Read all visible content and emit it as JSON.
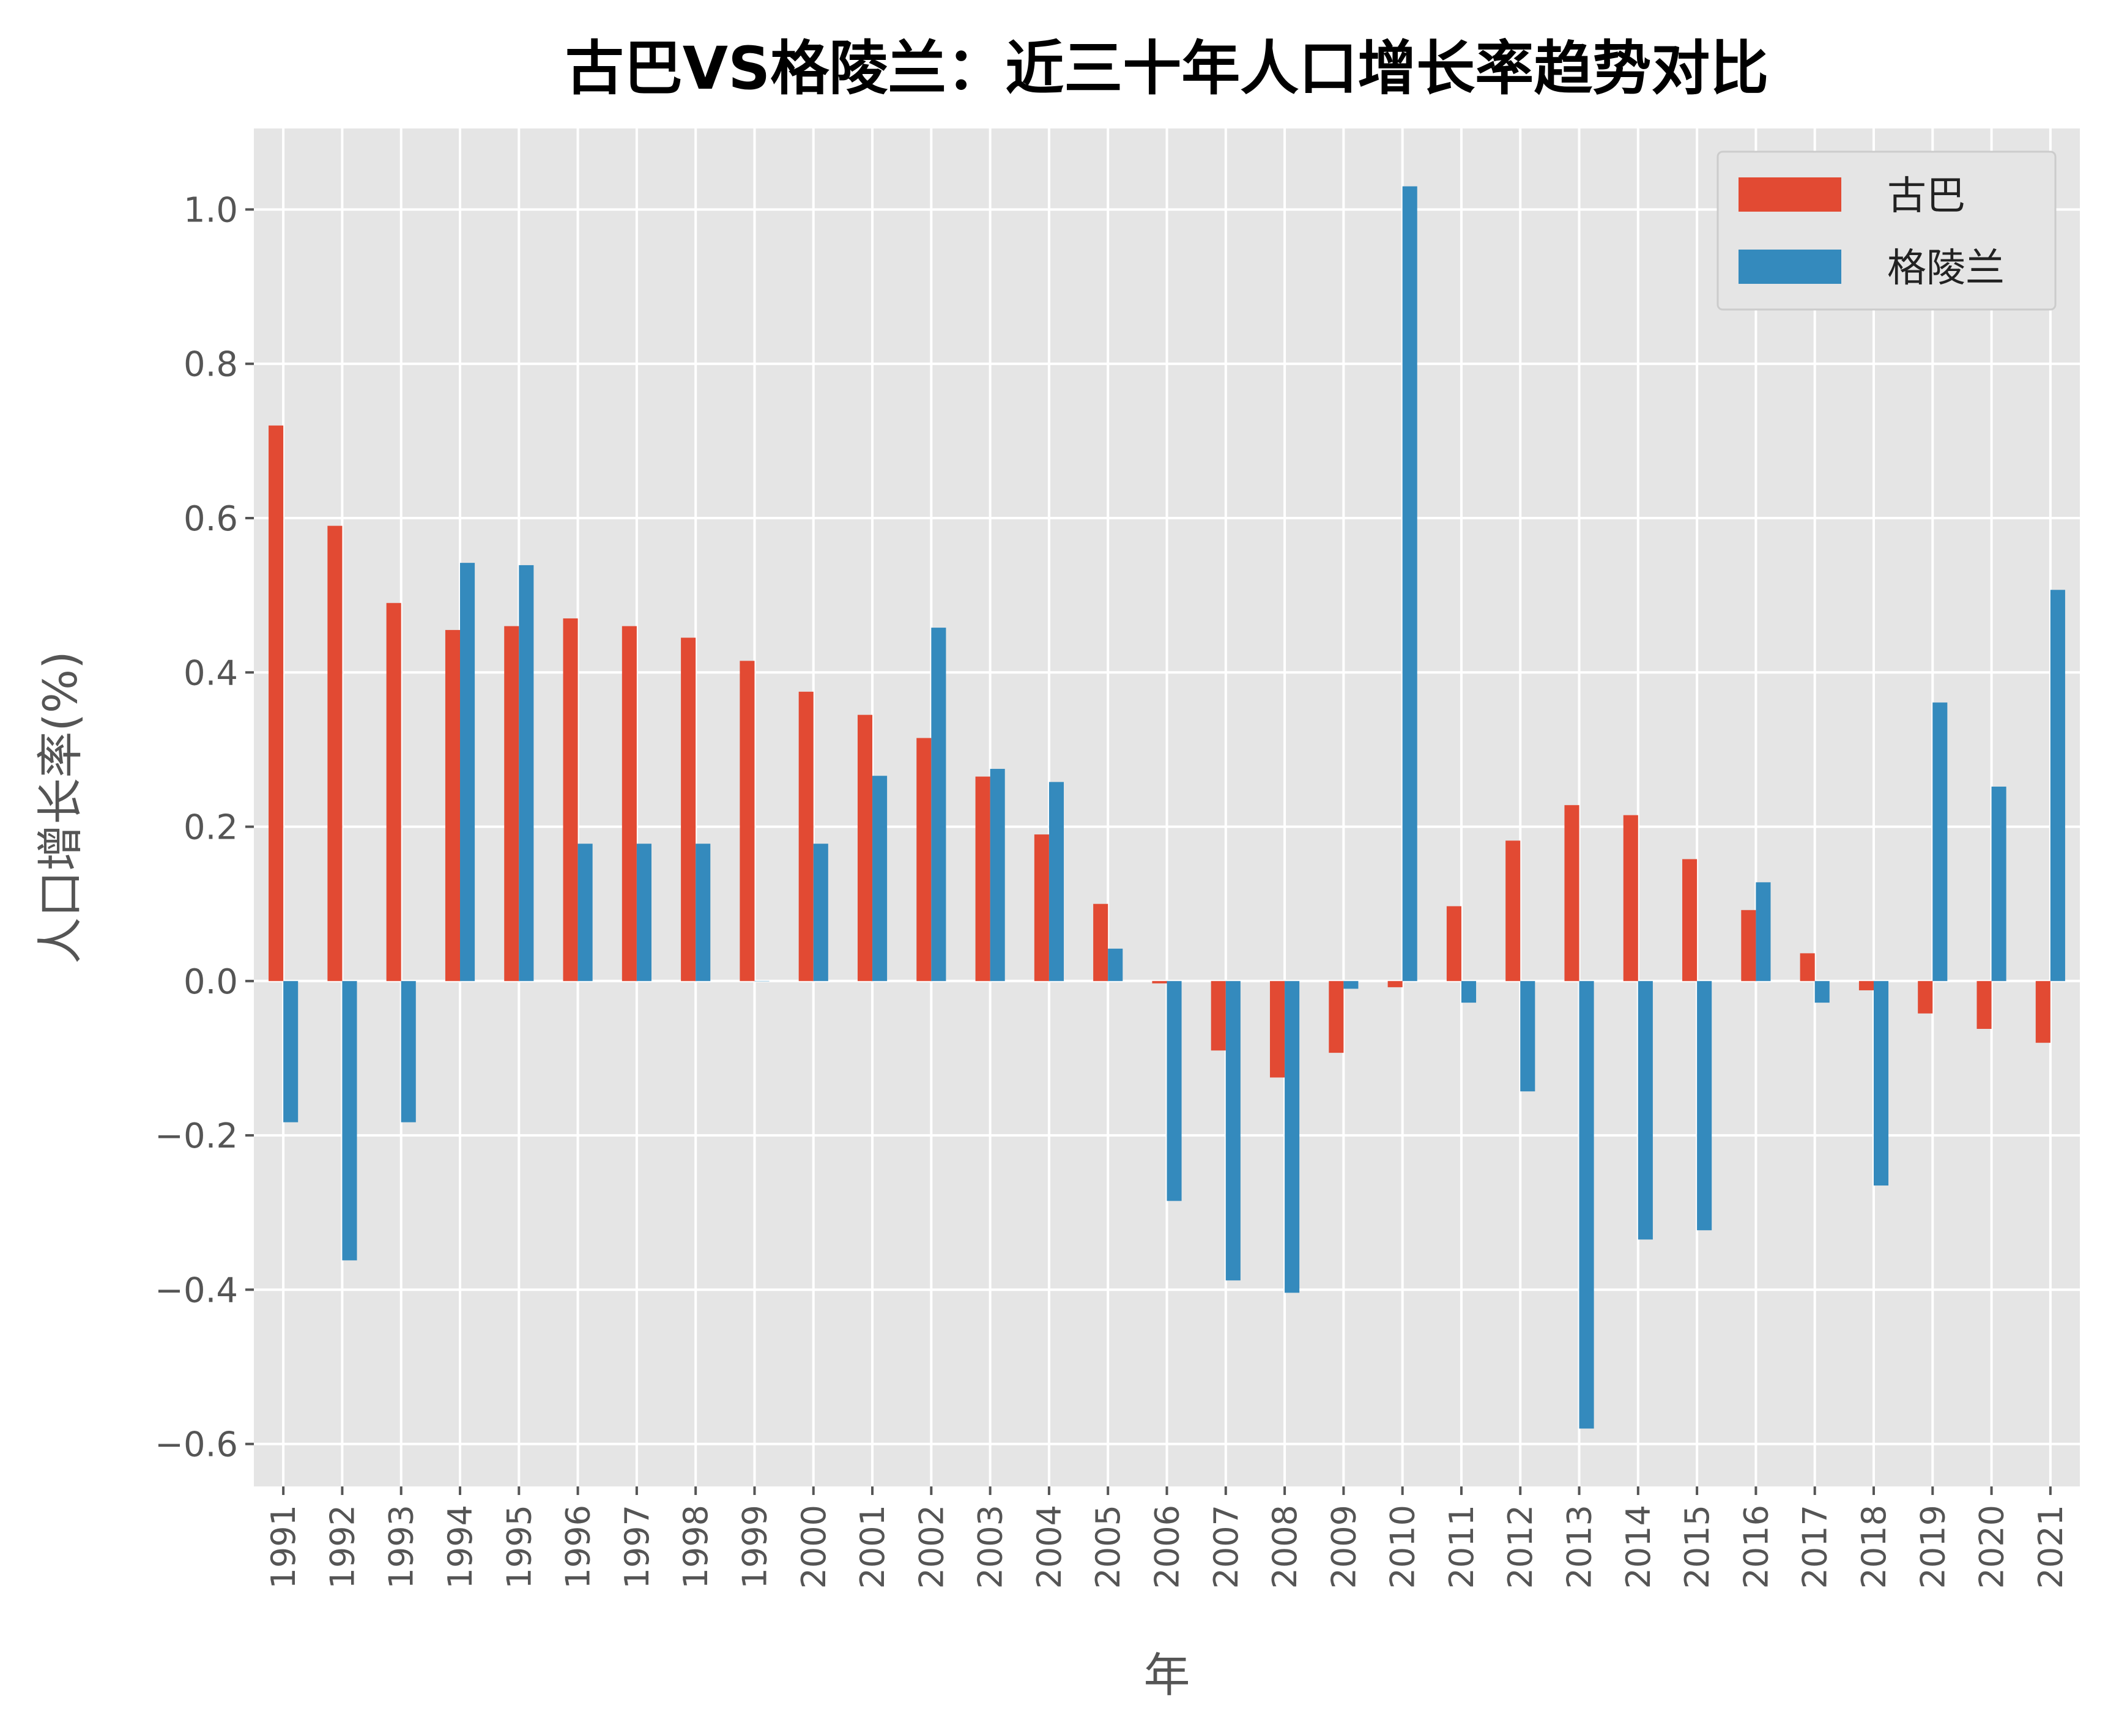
{
  "chart_data": {
    "type": "bar",
    "title": "古巴VS格陵兰：近三十年人口增长率趋势对比",
    "xlabel": "年",
    "ylabel": "人口增长率(%)",
    "ylim": [
      -0.655,
      1.105
    ],
    "yticks": [
      -0.6,
      -0.4,
      -0.2,
      0.0,
      0.2,
      0.4,
      0.6,
      0.8,
      1.0
    ],
    "ytick_labels": [
      "−0.6",
      "−0.4",
      "−0.2",
      "0.0",
      "0.2",
      "0.4",
      "0.6",
      "0.8",
      "1.0"
    ],
    "grid": true,
    "legend_position": "top-right",
    "categories": [
      "1991",
      "1992",
      "1993",
      "1994",
      "1995",
      "1996",
      "1997",
      "1998",
      "1999",
      "2000",
      "2001",
      "2002",
      "2003",
      "2004",
      "2005",
      "2006",
      "2007",
      "2008",
      "2009",
      "2010",
      "2011",
      "2012",
      "2013",
      "2014",
      "2015",
      "2016",
      "2017",
      "2018",
      "2019",
      "2020",
      "2021"
    ],
    "series": [
      {
        "name": "古巴",
        "color": "#E24A33",
        "values": [
          0.72,
          0.59,
          0.49,
          0.455,
          0.46,
          0.47,
          0.46,
          0.445,
          0.415,
          0.375,
          0.345,
          0.315,
          0.265,
          0.19,
          0.1,
          -0.003,
          -0.09,
          -0.125,
          -0.093,
          -0.008,
          0.097,
          0.182,
          0.228,
          0.215,
          0.158,
          0.092,
          0.036,
          -0.012,
          -0.042,
          -0.062,
          -0.08
        ]
      },
      {
        "name": "格陵兰",
        "color": "#348ABD",
        "values": [
          -0.183,
          -0.362,
          -0.183,
          0.542,
          0.539,
          0.178,
          0.178,
          0.178,
          0.0,
          0.178,
          0.266,
          0.458,
          0.275,
          0.258,
          0.042,
          -0.285,
          -0.388,
          -0.404,
          -0.01,
          1.03,
          -0.028,
          -0.143,
          -0.58,
          -0.335,
          -0.323,
          0.128,
          -0.028,
          -0.265,
          0.361,
          0.252,
          0.507
        ]
      }
    ]
  },
  "colors": {
    "plot_background": "#E5E5E5",
    "grid": "#FFFFFF",
    "text": "#555555",
    "title": "#000000"
  }
}
